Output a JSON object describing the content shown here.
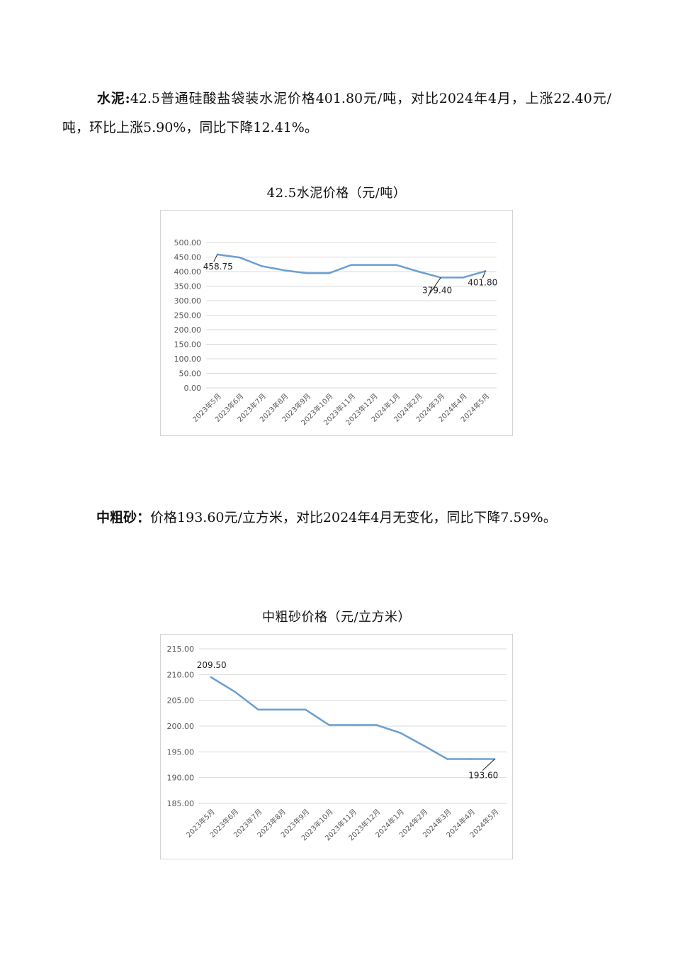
{
  "section1": {
    "label": "水泥",
    "sep": ":",
    "body": "42.5普通硅酸盐袋装水泥价格401.80元/吨，对比2024年4月，上涨22.40元/吨，环比上涨5.90%，同比下降12.41%。"
  },
  "section2": {
    "label": "中粗砂",
    "sep": "：",
    "body": "价格193.60元/立方米，对比2024年4月无变化，同比下降7.59%。"
  },
  "chart_data": [
    {
      "type": "line",
      "title": "42.5水泥价格（元/吨）",
      "categories": [
        "2023年5月",
        "2023年6月",
        "2023年7月",
        "2023年8月",
        "2023年9月",
        "2023年10月",
        "2023年11月",
        "2023年12月",
        "2024年1月",
        "2024年2月",
        "2024年3月",
        "2024年4月",
        "2024年5月"
      ],
      "values": [
        458.75,
        448.5,
        418.5,
        404.5,
        394.5,
        394.5,
        423.0,
        423.0,
        423.0,
        400.0,
        379.4,
        379.4,
        401.8
      ],
      "ylim": [
        0,
        500
      ],
      "yticks": [
        "0.00",
        "50.00",
        "100.00",
        "150.00",
        "200.00",
        "250.00",
        "300.00",
        "350.00",
        "400.00",
        "450.00",
        "500.00"
      ],
      "data_labels": [
        {
          "index": 0,
          "text": "458.75"
        },
        {
          "index": 10,
          "text": "379.40"
        },
        {
          "index": 12,
          "text": "401.80"
        }
      ],
      "grid": true,
      "color": "#6a9fd0"
    },
    {
      "type": "line",
      "title": "中粗砂价格（元/立方米）",
      "categories": [
        "2023年5月",
        "2023年6月",
        "2023年7月",
        "2023年8月",
        "2023年9月",
        "2023年10月",
        "2023年11月",
        "2023年12月",
        "2024年1月",
        "2024年2月",
        "2024年3月",
        "2024年4月",
        "2024年5月"
      ],
      "values": [
        209.5,
        206.7,
        203.2,
        203.2,
        203.2,
        200.2,
        200.2,
        200.2,
        198.7,
        196.2,
        193.6,
        193.6,
        193.6
      ],
      "ylim": [
        185,
        215
      ],
      "yticks": [
        "185.00",
        "190.00",
        "195.00",
        "200.00",
        "205.00",
        "210.00",
        "215.00"
      ],
      "data_labels": [
        {
          "index": 0,
          "text": "209.50"
        },
        {
          "index": 12,
          "text": "193.60"
        }
      ],
      "grid": true,
      "color": "#6a9fd0"
    }
  ]
}
